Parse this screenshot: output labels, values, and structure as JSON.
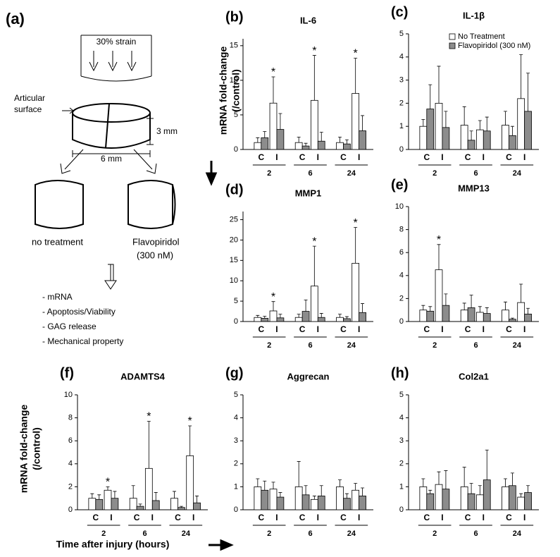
{
  "diagram": {
    "label": "(a)",
    "strain": "30% strain",
    "surface": [
      "Articular",
      "surface"
    ],
    "height": "3 mm",
    "width": "6 mm",
    "left": "no treatment",
    "right": [
      "Flavopiridol",
      "(300 nM)"
    ],
    "outputs": [
      "- mRNA",
      "- Apoptosis/Viability",
      "- GAG release",
      "- Mechanical property"
    ]
  },
  "legend": [
    {
      "name": "No Treatment",
      "color": "#ffffff"
    },
    {
      "name": "Flavopiridol (300 nM)",
      "color": "#8c8c8c"
    }
  ],
  "chart_data": [
    {
      "type": "bar",
      "label": "(b)",
      "title": "IL-6",
      "ylabel": [
        "mRNA fold-change",
        "(/control)"
      ],
      "ylim": [
        0,
        16
      ],
      "yticks": [
        0,
        5,
        10,
        15
      ],
      "categories": [
        "C",
        "I",
        "C",
        "I",
        "C",
        "I"
      ],
      "groups": [
        "2",
        "6",
        "24"
      ],
      "series": [
        {
          "values": [
            1.0,
            6.7,
            1.0,
            7.1,
            1.0,
            8.1
          ],
          "errors": [
            0.7,
            3.8,
            0.8,
            6.5,
            0.8,
            5.1
          ],
          "markers": [
            null,
            "*",
            null,
            "*",
            null,
            "*"
          ]
        },
        {
          "values": [
            1.7,
            2.9,
            0.5,
            1.2,
            0.8,
            2.7
          ],
          "errors": [
            0.9,
            2.3,
            0.4,
            1.3,
            0.6,
            2.2
          ]
        }
      ]
    },
    {
      "type": "bar",
      "label": "(c)",
      "title": "IL-1β",
      "show_legend": true,
      "ylim": [
        0,
        5
      ],
      "yticks": [
        0,
        1,
        2,
        3,
        4,
        5
      ],
      "categories": [
        "C",
        "I",
        "C",
        "I",
        "C",
        "I"
      ],
      "groups": [
        "2",
        "6",
        "24"
      ],
      "series": [
        {
          "values": [
            1.0,
            2.0,
            1.05,
            0.85,
            1.05,
            2.2
          ],
          "errors": [
            0.3,
            1.6,
            0.8,
            0.4,
            0.6,
            1.9
          ]
        },
        {
          "values": [
            1.75,
            0.95,
            0.4,
            0.8,
            0.6,
            1.65
          ],
          "errors": [
            1.05,
            0.7,
            0.4,
            0.6,
            0.4,
            1.65
          ]
        }
      ]
    },
    {
      "type": "bar",
      "label": "(d)",
      "title": "MMP1",
      "ylim": [
        0,
        27
      ],
      "yticks": [
        0,
        5,
        10,
        15,
        20,
        25
      ],
      "categories": [
        "C",
        "I",
        "C",
        "I",
        "C",
        "I"
      ],
      "groups": [
        "2",
        "6",
        "24"
      ],
      "series": [
        {
          "values": [
            1.0,
            2.6,
            1.0,
            8.7,
            1.0,
            14.3
          ],
          "errors": [
            0.5,
            2.3,
            0.8,
            9.8,
            0.8,
            8.8
          ],
          "markers": [
            null,
            "*",
            null,
            "*",
            null,
            "*"
          ]
        },
        {
          "values": [
            0.8,
            0.9,
            2.5,
            1.0,
            0.7,
            2.2
          ],
          "errors": [
            0.5,
            0.9,
            2.8,
            1.0,
            0.5,
            2.2
          ]
        }
      ]
    },
    {
      "type": "bar",
      "label": "(e)",
      "title": "MMP13",
      "ylim": [
        0,
        10
      ],
      "yticks": [
        0,
        2,
        4,
        6,
        8,
        10
      ],
      "categories": [
        "C",
        "I",
        "C",
        "I",
        "C",
        "I"
      ],
      "groups": [
        "2",
        "6",
        "24"
      ],
      "series": [
        {
          "values": [
            1.0,
            4.5,
            1.0,
            0.8,
            1.0,
            1.65
          ],
          "errors": [
            0.4,
            2.2,
            0.6,
            0.5,
            0.7,
            1.6
          ],
          "markers": [
            null,
            "*",
            null,
            null,
            null,
            null
          ]
        },
        {
          "values": [
            0.9,
            1.4,
            1.2,
            0.7,
            0.2,
            0.65
          ],
          "errors": [
            0.4,
            1.0,
            1.1,
            0.5,
            0.1,
            0.5
          ]
        }
      ]
    },
    {
      "type": "bar",
      "label": "(f)",
      "title": "ADAMTS4",
      "ylabel": [
        "mRNA fold-change",
        "(/control)"
      ],
      "xlabel": "Time after injury (hours)",
      "ylim": [
        0,
        10
      ],
      "yticks": [
        0,
        2,
        4,
        6,
        8,
        10
      ],
      "categories": [
        "C",
        "I",
        "C",
        "I",
        "C",
        "I"
      ],
      "groups": [
        "2",
        "6",
        "24"
      ],
      "series": [
        {
          "values": [
            1.0,
            1.7,
            1.0,
            3.6,
            1.0,
            4.7
          ],
          "errors": [
            0.4,
            0.3,
            1.1,
            4.1,
            0.6,
            2.6
          ],
          "markers": [
            null,
            "*",
            null,
            "*",
            null,
            "*"
          ]
        },
        {
          "values": [
            0.9,
            1.0,
            0.3,
            0.8,
            0.2,
            0.6
          ],
          "errors": [
            0.4,
            0.6,
            0.2,
            0.7,
            0.1,
            0.6
          ]
        }
      ]
    },
    {
      "type": "bar",
      "label": "(g)",
      "title": "Aggrecan",
      "ylim": [
        0,
        5
      ],
      "yticks": [
        0,
        1,
        2,
        3,
        4,
        5
      ],
      "categories": [
        "C",
        "I",
        "C",
        "I",
        "C",
        "I"
      ],
      "groups": [
        "2",
        "6",
        "24"
      ],
      "series": [
        {
          "values": [
            1.0,
            0.9,
            1.0,
            0.45,
            1.0,
            0.85
          ],
          "errors": [
            0.35,
            0.3,
            1.1,
            0.15,
            0.3,
            0.3
          ]
        },
        {
          "values": [
            0.85,
            0.55,
            0.65,
            0.6,
            0.5,
            0.6
          ],
          "errors": [
            0.4,
            0.2,
            0.4,
            0.45,
            0.2,
            0.35
          ]
        }
      ]
    },
    {
      "type": "bar",
      "label": "(h)",
      "title": "Col2a1",
      "ylim": [
        0,
        5
      ],
      "yticks": [
        0,
        1,
        2,
        3,
        4,
        5
      ],
      "categories": [
        "C",
        "I",
        "C",
        "I",
        "C",
        "I"
      ],
      "groups": [
        "2",
        "6",
        "24"
      ],
      "series": [
        {
          "values": [
            1.0,
            1.1,
            1.0,
            0.65,
            1.0,
            0.55
          ],
          "errors": [
            0.35,
            0.55,
            0.85,
            0.4,
            0.35,
            0.15
          ]
        },
        {
          "values": [
            0.7,
            0.9,
            0.7,
            1.3,
            1.05,
            0.75
          ],
          "errors": [
            0.15,
            0.8,
            0.45,
            1.3,
            0.55,
            0.3
          ]
        }
      ]
    }
  ]
}
